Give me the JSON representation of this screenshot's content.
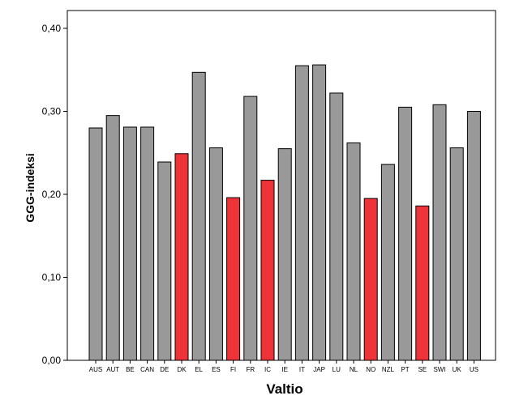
{
  "chart_data": {
    "type": "bar",
    "title": "",
    "xlabel": "Valtio",
    "ylabel": "GGG-indeksi",
    "ylim": [
      0,
      0.4
    ],
    "yticks": [
      {
        "value": 0.0,
        "label": "0,00"
      },
      {
        "value": 0.1,
        "label": "0,10"
      },
      {
        "value": 0.2,
        "label": "0,20"
      },
      {
        "value": 0.3,
        "label": "0,30"
      },
      {
        "value": 0.4,
        "label": "0,40"
      }
    ],
    "categories": [
      "AUS",
      "AUT",
      "BE",
      "CAN",
      "DE",
      "DK",
      "EL",
      "ES",
      "FI",
      "FR",
      "IC",
      "IE",
      "IT",
      "JAP",
      "LU",
      "NL",
      "NO",
      "NZL",
      "PT",
      "SE",
      "SWI",
      "UK",
      "US"
    ],
    "values": [
      0.28,
      0.295,
      0.281,
      0.281,
      0.239,
      0.249,
      0.347,
      0.256,
      0.196,
      0.318,
      0.217,
      0.255,
      0.355,
      0.356,
      0.322,
      0.262,
      0.195,
      0.236,
      0.305,
      0.186,
      0.308,
      0.256,
      0.3
    ],
    "highlighted": [
      "DK",
      "FI",
      "IC",
      "NO",
      "SE"
    ],
    "colors": {
      "default_bar": "#999999",
      "highlight_bar": "#ee3339",
      "bar_stroke": "#000000",
      "axis": "#000000",
      "background": "#ffffff"
    },
    "grid": false,
    "legend": "none"
  }
}
